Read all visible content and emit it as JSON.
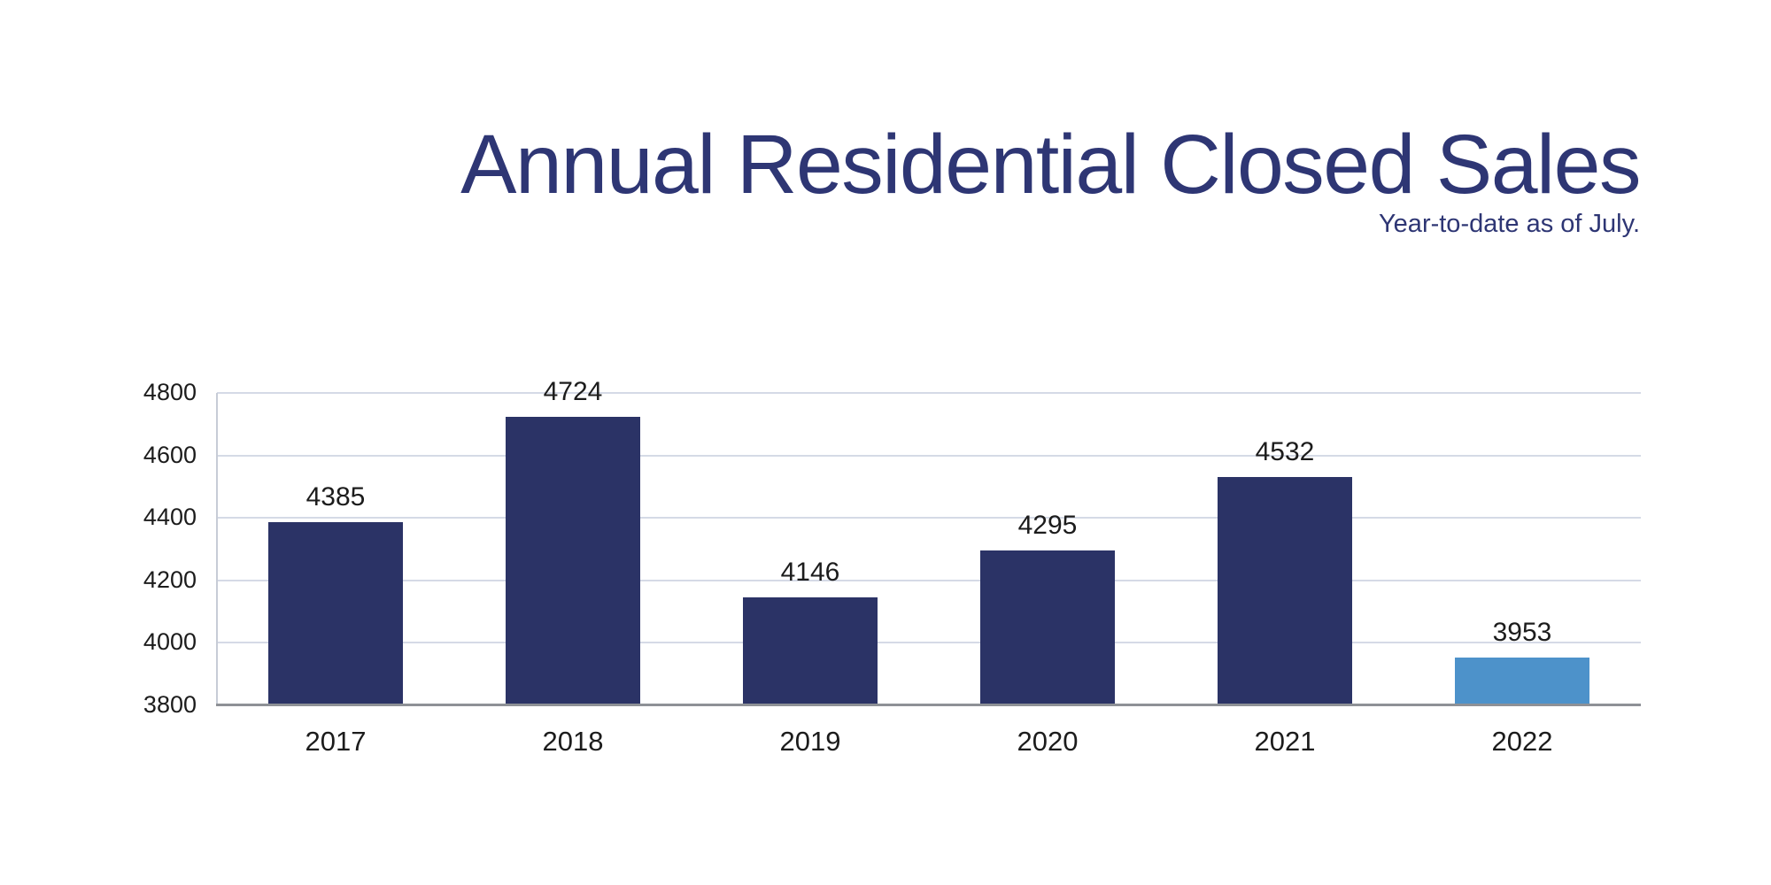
{
  "header": {
    "title": "Annual Residential Closed Sales",
    "subtitle": "Year-to-date as of July."
  },
  "colors": {
    "title_text": "#2e3674",
    "subtitle_text": "#2e3674",
    "bar_navy": "#2b3366",
    "bar_highlight_blue": "#4d92ca",
    "gridline": "#d5dae6",
    "y_axis_line": "#c7ccd6",
    "x_axis_line": "#8e9196",
    "tick_text": "#1c1c1c",
    "background": "#ffffff"
  },
  "chart_data": {
    "type": "bar",
    "title": "Annual Residential Closed Sales",
    "subtitle": "Year-to-date as of July.",
    "categories": [
      "2017",
      "2018",
      "2019",
      "2020",
      "2021",
      "2022"
    ],
    "values": [
      4385,
      4724,
      4146,
      4295,
      4532,
      3953
    ],
    "bar_colors": [
      "#2b3366",
      "#2b3366",
      "#2b3366",
      "#2b3366",
      "#2b3366",
      "#4d92ca"
    ],
    "highlight_index": 5,
    "data_labels": [
      4385,
      4724,
      4146,
      4295,
      4532,
      3953
    ],
    "xlabel": "",
    "ylabel": "",
    "ylim": [
      3800,
      4800
    ],
    "yticks": [
      3800,
      4000,
      4200,
      4400,
      4600,
      4800
    ],
    "grid": "horizontal",
    "legend": "none"
  }
}
